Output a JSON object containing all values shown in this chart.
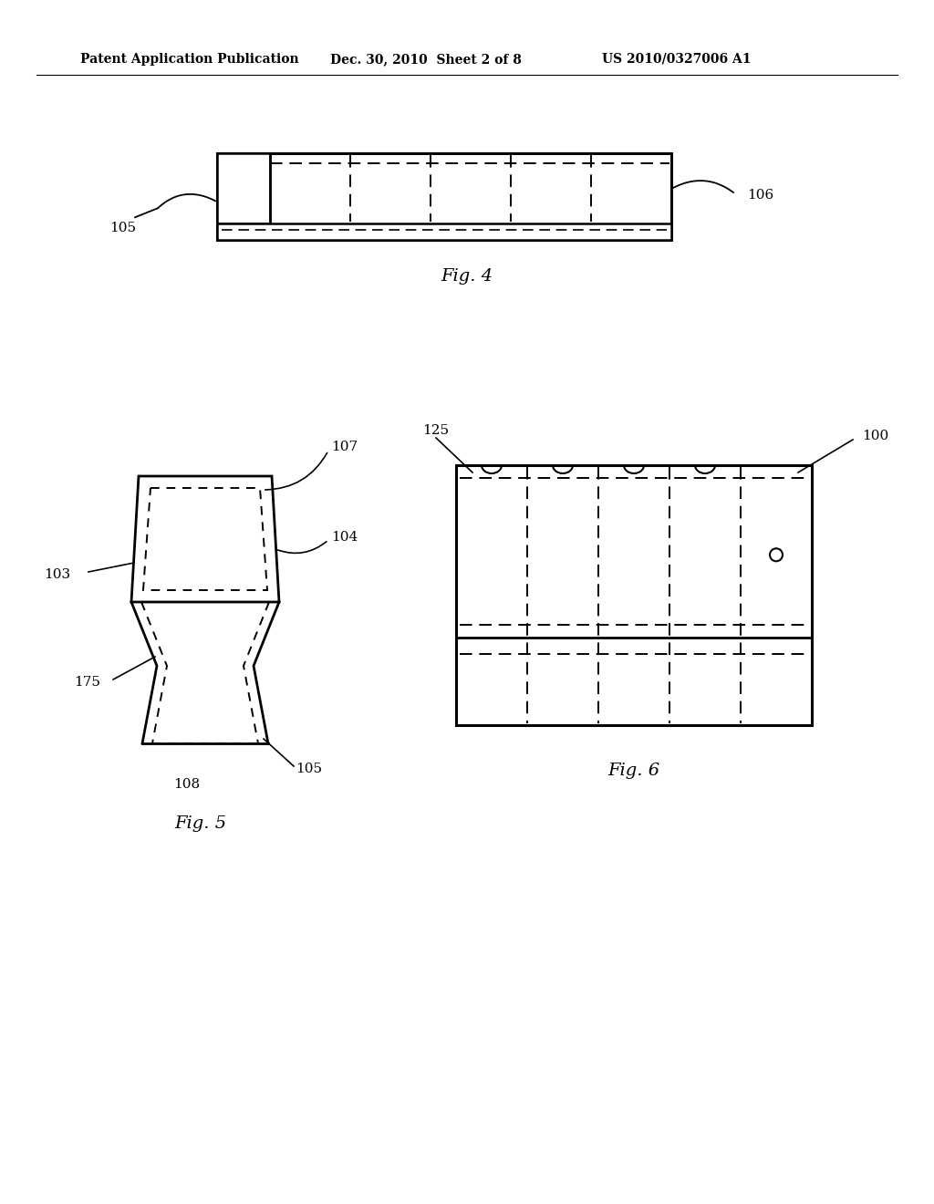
{
  "bg_color": "#ffffff",
  "header_text1": "Patent Application Publication",
  "header_text2": "Dec. 30, 2010  Sheet 2 of 8",
  "header_text3": "US 2010/0327006 A1",
  "fig4_label": "Fig. 4",
  "fig5_label": "Fig. 5",
  "fig6_label": "Fig. 6",
  "label_105_fig4": "105",
  "label_106_fig4": "106",
  "label_103": "103",
  "label_104": "104",
  "label_107": "107",
  "label_108": "108",
  "label_105_fig5": "105",
  "label_175": "175",
  "label_125": "125",
  "label_100": "100"
}
